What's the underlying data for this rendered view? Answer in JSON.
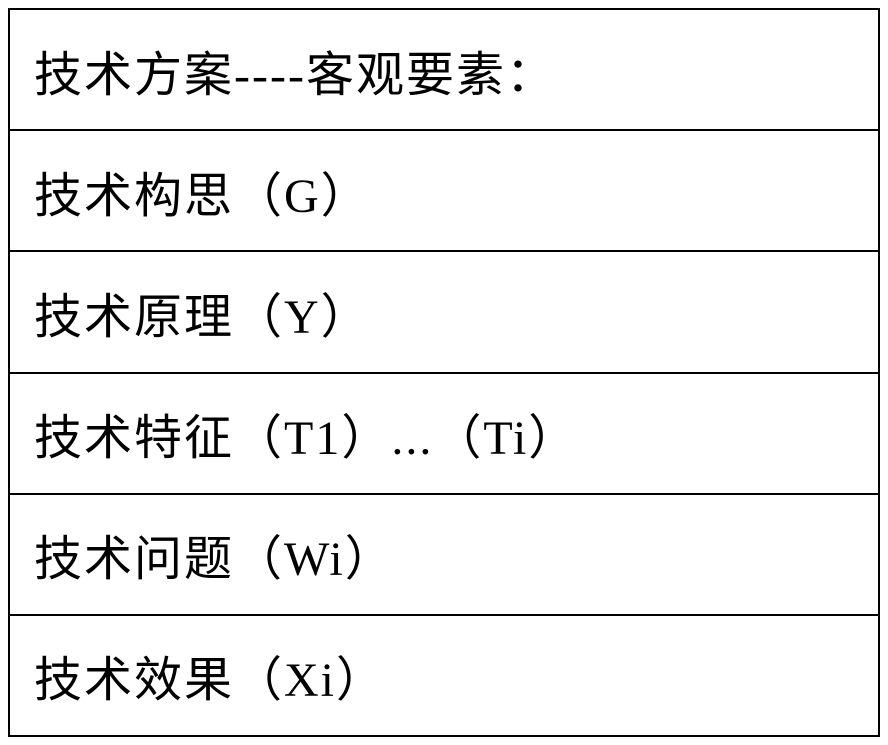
{
  "table": {
    "rows": [
      {
        "text": "技术方案----客观要素："
      },
      {
        "text": "技术构思（G）"
      },
      {
        "text": "技术原理（Y）"
      },
      {
        "text": "技术特征（T1）...（Ti）"
      },
      {
        "text": "技术问题（Wi）"
      },
      {
        "text": "技术效果（Xi）"
      }
    ],
    "border_color": "#000000",
    "background_color": "#ffffff",
    "text_color": "#000000",
    "font_size": 48,
    "row_count": 6
  }
}
